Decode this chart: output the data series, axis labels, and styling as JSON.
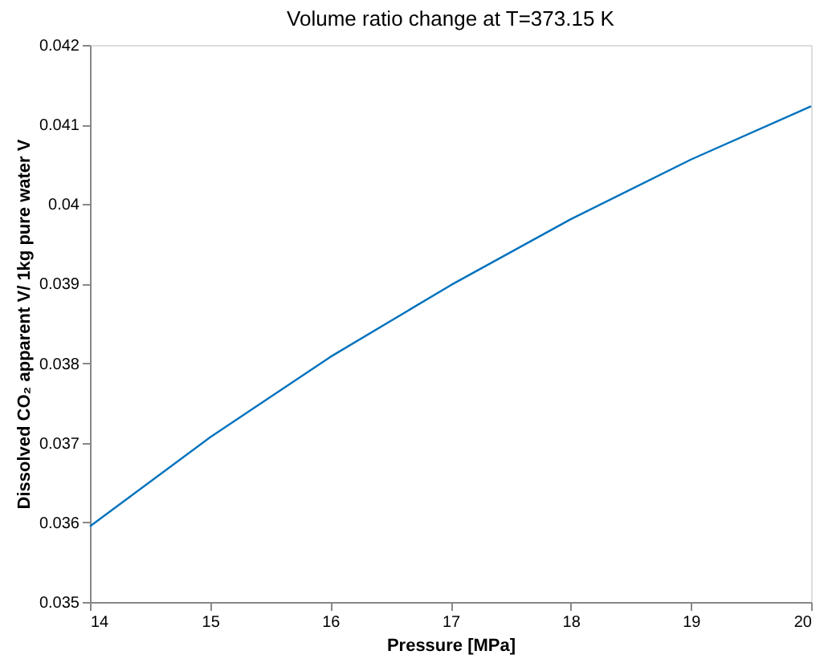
{
  "chart_data": {
    "type": "line",
    "title": "Volume ratio change at T=373.15 K",
    "xlabel": "Pressure [MPa]",
    "ylabel": "Dissolved CO₂ apparent V/ 1kg pure water V",
    "x": [
      14,
      15,
      16,
      17,
      18,
      19,
      20
    ],
    "series": [
      {
        "color": "#0072bd",
        "values": [
          0.03595,
          0.03707,
          0.03808,
          0.03898,
          0.03981,
          0.04056,
          0.04123
        ]
      }
    ],
    "xlim": [
      14,
      20
    ],
    "xticks": [
      14,
      15,
      16,
      17,
      18,
      19,
      20
    ],
    "ylim": [
      0.035,
      0.042
    ],
    "yticks": [
      0.035,
      0.036,
      0.037,
      0.038,
      0.039,
      0.04,
      0.041,
      0.042
    ],
    "grid": false,
    "legend": false,
    "marker": "none",
    "line_style": "solid"
  }
}
